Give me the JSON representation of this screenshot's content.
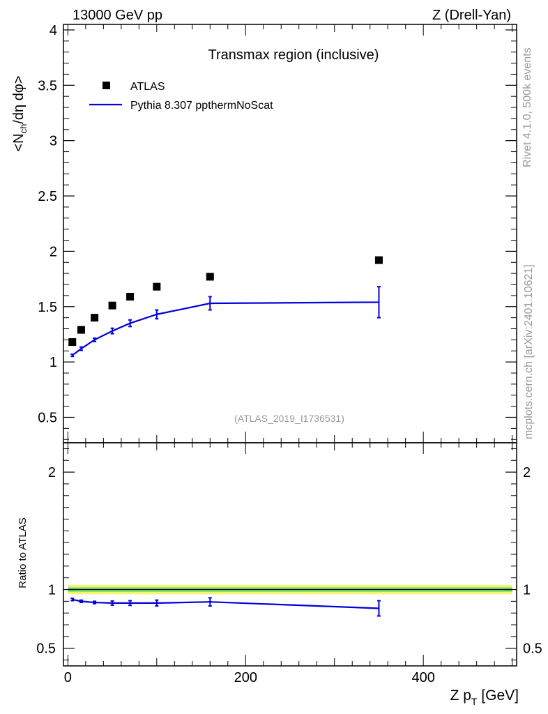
{
  "header": {
    "energy_label": "13000 GeV pp",
    "process_label": "Z (Drell-Yan)"
  },
  "side_labels": {
    "rivet": "Rivet 4.1.0,  500k events",
    "mcplots": "mcplots.cern.ch [arXiv:2401.10621]"
  },
  "chart_data": [
    {
      "type": "scatter",
      "panel": "main",
      "title": "Transmax region (inclusive)",
      "ylabel": "<N_ch/dη dφ>",
      "ylabel_parts": {
        "pre": "<N",
        "sub": "ch",
        "post": "/dη dφ>"
      },
      "xlim": [
        -5,
        505
      ],
      "ylim": [
        0.27,
        4.05
      ],
      "yticks": [
        0.5,
        1,
        1.5,
        2,
        2.5,
        3,
        3.5,
        4
      ],
      "ytick_labels": [
        "0.5",
        "1",
        "1.5",
        "2",
        "2.5",
        "3",
        "3.5",
        "4"
      ],
      "watermark": "(ATLAS_2019_I1736531)",
      "legend": [
        "ATLAS",
        "Pythia 8.307 ppthermNoScat"
      ],
      "series": [
        {
          "name": "ATLAS",
          "style": "markers",
          "color": "#000000",
          "x": [
            5,
            15,
            30,
            50,
            70,
            100,
            160,
            350
          ],
          "y": [
            1.18,
            1.29,
            1.4,
            1.51,
            1.59,
            1.68,
            1.77,
            1.92
          ]
        },
        {
          "name": "Pythia 8.307 ppthermNoScat",
          "style": "line",
          "color": "#0000dd",
          "x": [
            5,
            15,
            30,
            50,
            70,
            100,
            160,
            350
          ],
          "y": [
            1.06,
            1.12,
            1.2,
            1.28,
            1.35,
            1.43,
            1.53,
            1.54
          ],
          "err": [
            0.01,
            0.015,
            0.015,
            0.025,
            0.03,
            0.04,
            0.06,
            0.14
          ]
        }
      ]
    },
    {
      "type": "line",
      "panel": "ratio",
      "ylabel": "Ratio to ATLAS",
      "xlabel_parts": {
        "pre": "Z p",
        "sub": "T",
        "post": " [GeV]"
      },
      "xlim": [
        -5,
        505
      ],
      "ylim": [
        0.35,
        2.25
      ],
      "yticks": [
        0.5,
        1,
        2
      ],
      "ytick_labels": [
        "0.5",
        "1",
        "2"
      ],
      "xticks": [
        0,
        200,
        400
      ],
      "xtick_labels": [
        "0",
        "200",
        "400"
      ],
      "reference_line": 1,
      "reference_band": [
        0.96,
        1.04
      ],
      "series": [
        {
          "name": "Pythia 8.307 ppthermNoScat",
          "color": "#0000dd",
          "x": [
            5,
            15,
            30,
            50,
            70,
            100,
            160,
            350
          ],
          "y": [
            0.915,
            0.9,
            0.89,
            0.885,
            0.885,
            0.885,
            0.895,
            0.84
          ],
          "err": [
            0.01,
            0.01,
            0.01,
            0.018,
            0.02,
            0.025,
            0.035,
            0.065
          ]
        }
      ]
    }
  ]
}
